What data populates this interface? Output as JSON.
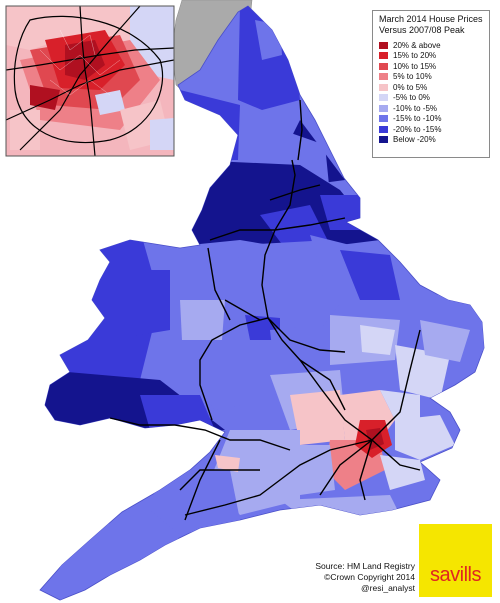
{
  "legend": {
    "title_line1": "March 2014 House Prices",
    "title_line2": "Versus 2007/08 Peak",
    "items": [
      {
        "label": "20% & above",
        "color": "#b01020"
      },
      {
        "label": "15% to  20%",
        "color": "#d8202a"
      },
      {
        "label": "10% to  15%",
        "color": "#e04850"
      },
      {
        "label": "5% to  10%",
        "color": "#ee8088"
      },
      {
        "label": "0% to  5%",
        "color": "#f6c4c8"
      },
      {
        "label": "-5% to  0%",
        "color": "#d4d6f6"
      },
      {
        "label": "-10% to  -5%",
        "color": "#a6aaf0"
      },
      {
        "label": "-15% to -10%",
        "color": "#6e74ea"
      },
      {
        "label": "-20% to -15%",
        "color": "#3a3ad8"
      },
      {
        "label": "Below -20%",
        "color": "#14148e"
      }
    ]
  },
  "source": {
    "line1": "Source: HM Land Registry",
    "line2": "©Crown Copyright 2014",
    "line3": "@resi_analyst"
  },
  "logo": {
    "text": "savills",
    "background": "#f5e600",
    "text_color": "#e02620"
  },
  "colors": {
    "scotland": "#aaaaaa",
    "sea": "#ffffff",
    "roads": "#000000"
  }
}
